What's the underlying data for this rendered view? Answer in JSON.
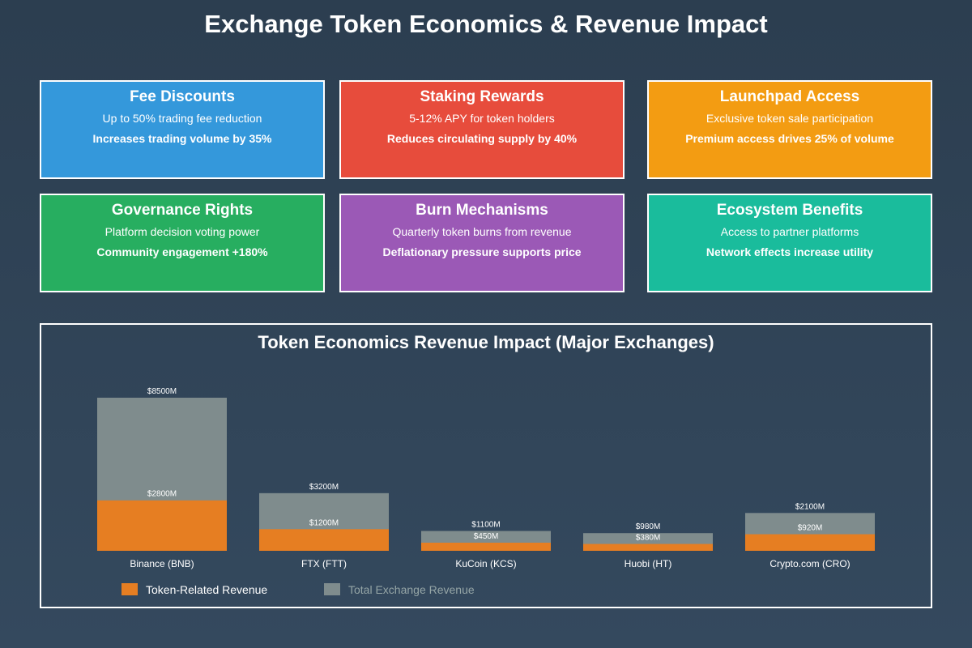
{
  "page": {
    "title": "Exchange Token Economics & Revenue Impact"
  },
  "colors": {
    "token_revenue": "#e67e22",
    "total_revenue": "#7f8c8d",
    "legend_total_text": "#95a5a6"
  },
  "cards": [
    {
      "title": "Fee Discounts",
      "desc": "Up to 50% trading fee reduction",
      "impact": "Increases trading volume by 35%",
      "color": "#3498db"
    },
    {
      "title": "Staking Rewards",
      "desc": "5-12% APY for token holders",
      "impact": "Reduces circulating supply by 40%",
      "color": "#e74c3c"
    },
    {
      "title": "Launchpad Access",
      "desc": "Exclusive token sale participation",
      "impact": "Premium access drives 25% of volume",
      "color": "#f39c12"
    },
    {
      "title": "Governance Rights",
      "desc": "Platform decision voting power",
      "impact": "Community engagement +180%",
      "color": "#27ae60"
    },
    {
      "title": "Burn Mechanisms",
      "desc": "Quarterly token burns from revenue",
      "impact": "Deflationary pressure supports price",
      "color": "#9b59b6"
    },
    {
      "title": "Ecosystem Benefits",
      "desc": "Access to partner platforms",
      "impact": "Network effects increase utility",
      "color": "#1abc9c"
    }
  ],
  "chart_data": {
    "type": "bar",
    "title": "Token Economics Revenue Impact (Major Exchanges)",
    "categories": [
      "Binance (BNB)",
      "FTX (FTT)",
      "KuCoin (KCS)",
      "Huobi (HT)",
      "Crypto.com (CRO)"
    ],
    "series": [
      {
        "name": "Total Exchange Revenue",
        "values": [
          8500,
          3200,
          1100,
          980,
          2100
        ],
        "labels": [
          "$8500M",
          "$3200M",
          "$1100M",
          "$980M",
          "$2100M"
        ]
      },
      {
        "name": "Token-Related Revenue",
        "values": [
          2800,
          1200,
          450,
          380,
          920
        ],
        "labels": [
          "$2800M",
          "$1200M",
          "$450M",
          "$380M",
          "$920M"
        ]
      }
    ],
    "overlay": true,
    "unit": "$M",
    "ylim": [
      0,
      8500
    ],
    "grid": false,
    "legend": {
      "position": "bottom-left",
      "entries": [
        "Token-Related Revenue",
        "Total Exchange Revenue"
      ]
    }
  }
}
